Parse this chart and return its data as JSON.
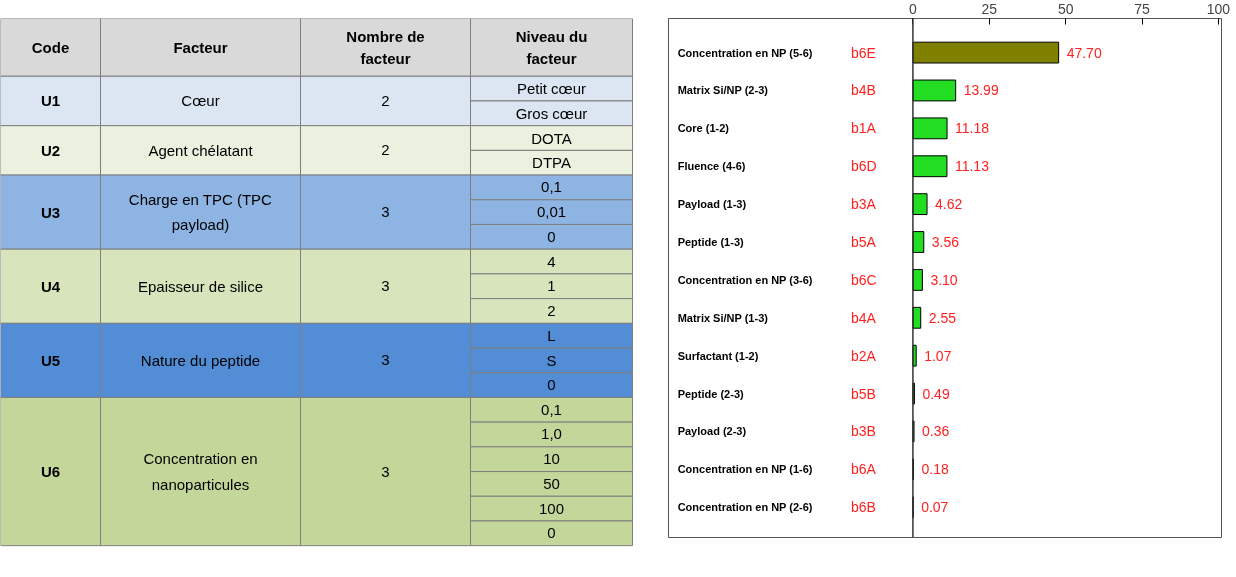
{
  "chart_data": [
    {
      "type": "other",
      "colors": [
        "#dce6f2",
        "#ebf1de",
        "#8db4e2",
        "#d8e4bc",
        "#538dd5",
        "#c4d79b"
      ],
      "annotations": [
        "Code",
        "Facteur",
        "Nombre de facteur",
        "Niveau du facteur",
        "U1",
        "Cœur",
        "2",
        "Petit cœur",
        "Gros cœur",
        "U2",
        "Agent chélatant",
        "2",
        "DOTA",
        "DTPA",
        "U3",
        "Charge en TPC (TPC payload)",
        "3",
        "0,1",
        "0,01",
        "0",
        "U4",
        "Epaisseur de silice",
        "3",
        "4",
        "1",
        "2",
        "U5",
        "Nature du peptide",
        "3",
        "L",
        "S",
        "0",
        "U6",
        "Concentration en nanoparticules",
        "3",
        "0,1",
        "1,0",
        "10",
        "50",
        "100",
        "0"
      ]
    },
    {
      "type": "bar",
      "orientation": "horizontal",
      "grid": false,
      "categories": [
        "Concentration en NP  (5-6)",
        "Matrix Si/NP (2-3)",
        "Core (1-2)",
        "Fluence (4-6)",
        "Payload (1-3)",
        "Peptide (1-3)",
        "Concentration en NP (3-6)",
        "Matrix Si/NP (1-3)",
        "Surfactant (1-2)",
        "Peptide (2-3)",
        "Payload (2-3)",
        "Concentration en NP (1-6)",
        "Concentration en NP  (2-6)"
      ],
      "values": [
        47.7,
        13.99,
        11.18,
        11.13,
        4.62,
        3.56,
        3.1,
        2.55,
        1.07,
        0.49,
        0.36,
        0.18,
        0.07
      ],
      "value_labels": [
        "47.70",
        "13.99",
        "11.18",
        "11.13",
        "4.62",
        "3.56",
        "3.10",
        "2.55",
        "1.07",
        "0.49",
        "0.36",
        "0.18",
        "0.07"
      ],
      "colors": [
        "#808000",
        "#22dd22",
        "#22dd22",
        "#22dd22",
        "#22dd22",
        "#22dd22",
        "#22dd22",
        "#22dd22",
        "#22dd22",
        "#22dd22",
        "#22dd22",
        "#22dd22",
        "#22dd22"
      ],
      "xlim": [
        -80,
        101
      ],
      "xticks": [
        0,
        25,
        50,
        75,
        100
      ],
      "ref_lines": [
        {
          "axis": "x",
          "value": 0
        }
      ],
      "annotations": [
        "b6E",
        "b4B",
        "b1A",
        "b6D",
        "b3A",
        "b5A",
        "b6C",
        "b4A",
        "b2A",
        "b5B",
        "b3B",
        "b6A",
        "b6B"
      ]
    }
  ]
}
